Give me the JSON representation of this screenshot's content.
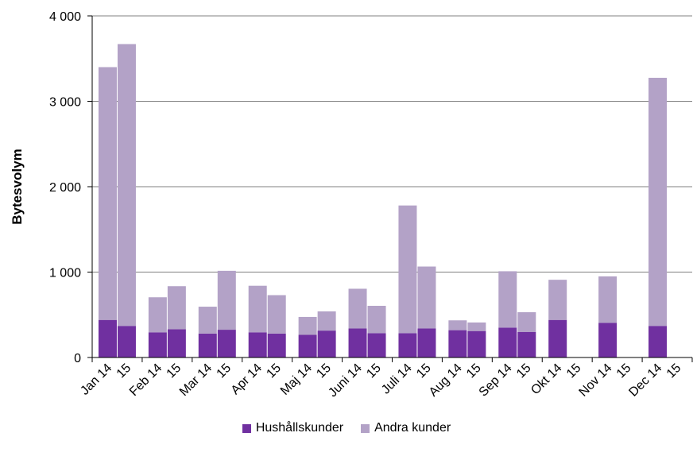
{
  "chart_data": {
    "type": "bar",
    "stacked": true,
    "ylabel": "Bytesvolym",
    "xlabel": "",
    "ylim": [
      0,
      4000
    ],
    "yticks": [
      0,
      1000,
      2000,
      3000,
      4000
    ],
    "ytick_labels": [
      "0",
      "1 000",
      "2 000",
      "3 000",
      "4 000"
    ],
    "grid": true,
    "legend_position": "bottom",
    "months": [
      "Jan",
      "Feb",
      "Mar",
      "Apr",
      "Maj",
      "Juni",
      "Juli",
      "Aug",
      "Sep",
      "Okt",
      "Nov",
      "Dec"
    ],
    "year_labels": [
      "14",
      "15"
    ],
    "categories": [
      "Jan 14",
      "15",
      "Feb 14",
      "15",
      "Mar 14",
      "15",
      "Apr 14",
      "15",
      "Maj 14",
      "15",
      "Juni 14",
      "15",
      "Juli 14",
      "15",
      "Aug 14",
      "15",
      "Sep 14",
      "15",
      "Okt 14",
      "15",
      "Nov 14",
      "15",
      "Dec 14",
      "15"
    ],
    "series": [
      {
        "name": "Hushållskunder",
        "color": "#7030a0",
        "values": [
          440,
          370,
          295,
          330,
          280,
          325,
          295,
          280,
          265,
          315,
          340,
          285,
          285,
          340,
          320,
          310,
          350,
          300,
          440,
          null,
          405,
          null,
          370,
          null
        ]
      },
      {
        "name": "Andra kunder",
        "color": "#b3a2c7",
        "values": [
          2960,
          3300,
          410,
          505,
          315,
          690,
          545,
          450,
          210,
          225,
          465,
          320,
          1495,
          725,
          115,
          100,
          660,
          230,
          470,
          null,
          545,
          null,
          2905,
          null
        ]
      }
    ]
  }
}
